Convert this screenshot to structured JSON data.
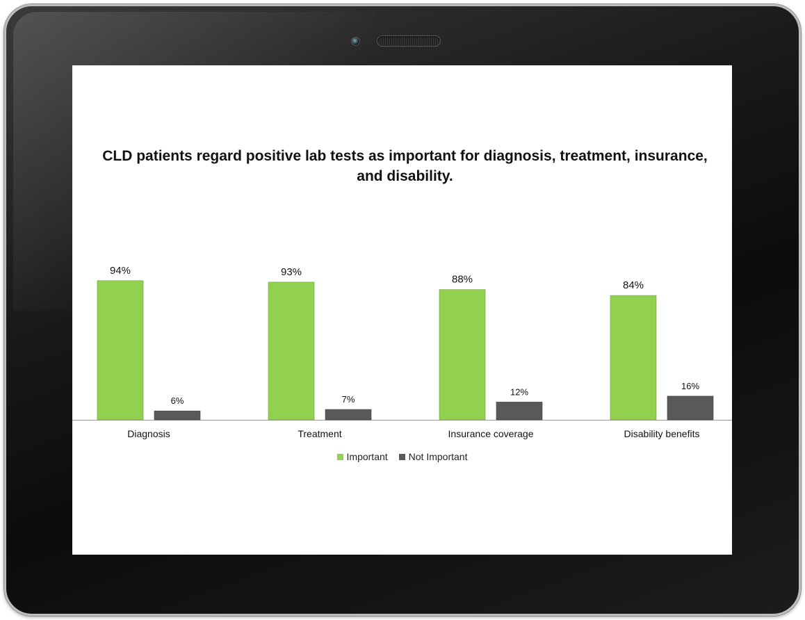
{
  "colors": {
    "important": "#92d050",
    "not_important": "#595959",
    "frame": "#111111"
  },
  "chart_data": {
    "type": "bar",
    "title": "CLD patients regard positive lab tests as important for diagnosis, treatment, insurance, and disability.",
    "categories": [
      "Diagnosis",
      "Treatment",
      "Insurance coverage",
      "Disability benefits"
    ],
    "series": [
      {
        "name": "Important",
        "values": [
          94,
          93,
          88,
          84
        ],
        "labels": [
          "94%",
          "93%",
          "88%",
          "84%"
        ]
      },
      {
        "name": "Not Important",
        "values": [
          6,
          7,
          12,
          16
        ],
        "labels": [
          "6%",
          "7%",
          "12%",
          "16%"
        ]
      }
    ],
    "ylim": [
      0,
      100
    ],
    "grid": false,
    "legend_position": "bottom"
  }
}
